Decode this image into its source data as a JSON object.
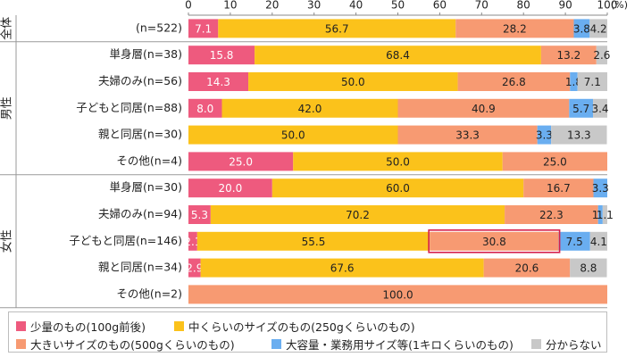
{
  "chart_data": {
    "type": "bar",
    "orientation": "horizontal",
    "stacked": true,
    "x_unit": "(%)",
    "xlim": [
      0,
      100
    ],
    "x_ticks": [
      "0",
      "10",
      "20",
      "30",
      "40",
      "50",
      "60",
      "70",
      "80",
      "90",
      "100"
    ],
    "groups": [
      {
        "label": "全体",
        "rows": [
          0
        ]
      },
      {
        "label": "男性",
        "rows": [
          1,
          2,
          3,
          4,
          5
        ]
      },
      {
        "label": "女性",
        "rows": [
          6,
          7,
          8,
          9,
          10
        ]
      }
    ],
    "categories": [
      "(n=522)",
      "単身層(n=38)",
      "夫婦のみ(n=56)",
      "子どもと同居(n=88)",
      "親と同居(n=30)",
      "その他(n=4)",
      "単身層(n=30)",
      "夫婦のみ(n=94)",
      "子どもと同居(n=146)",
      "親と同居(n=34)",
      "その他(n=2)"
    ],
    "series": [
      {
        "name": "少量のもの(100g前後)",
        "color": "#ee5a7e",
        "values": [
          7.1,
          15.8,
          14.3,
          8.0,
          0,
          25.0,
          20.0,
          5.3,
          2.1,
          2.9,
          0
        ],
        "labels": [
          "7.1",
          "15.8",
          "14.3",
          "8.0",
          "",
          "25.0",
          "20.0",
          "5.3",
          "2.1",
          "2.9",
          ""
        ]
      },
      {
        "name": "中くらいのサイズのもの(250gくらいのもの)",
        "color": "#fbc21b",
        "values": [
          56.7,
          68.4,
          50.0,
          42.0,
          50.0,
          50.0,
          60.0,
          70.2,
          55.5,
          67.6,
          0
        ],
        "labels": [
          "56.7",
          "68.4",
          "50.0",
          "42.0",
          "50.0",
          "50.0",
          "60.0",
          "70.2",
          "55.5",
          "67.6",
          ""
        ]
      },
      {
        "name": "大きいサイズのもの(500gくらいのもの)",
        "color": "#f79a72",
        "values": [
          28.2,
          13.2,
          26.8,
          40.9,
          33.3,
          25.0,
          16.7,
          22.3,
          30.8,
          20.6,
          100.0
        ],
        "labels": [
          "28.2",
          "13.2",
          "26.8",
          "40.9",
          "33.3",
          "25.0",
          "16.7",
          "22.3",
          "30.8",
          "20.6",
          "100.0"
        ]
      },
      {
        "name": "大容量・業務用サイズ等(1キロくらいのもの)",
        "color": "#6aaef0",
        "values": [
          3.8,
          0,
          1.8,
          5.7,
          3.3,
          0,
          3.3,
          1.1,
          7.5,
          0,
          0
        ],
        "labels": [
          "3.8",
          "",
          "1.8",
          "5.7",
          "3.3",
          "",
          "3.3",
          "1.1",
          "7.5",
          "",
          ""
        ]
      },
      {
        "name": "分からない",
        "color": "#c8c8c8",
        "values": [
          4.2,
          2.6,
          7.1,
          3.4,
          13.3,
          0,
          0,
          1.1,
          4.1,
          8.8,
          0
        ],
        "labels": [
          "4.2",
          "2.6",
          "7.1",
          "3.4",
          "13.3",
          "",
          "",
          "1.1",
          "4.1",
          "8.8",
          ""
        ]
      }
    ],
    "highlight": {
      "row": 8,
      "series": 2,
      "color": "#d6204d"
    },
    "legend_position": "bottom"
  },
  "legend_items": [
    "少量のもの(100g前後)",
    "中くらいのサイズのもの(250gくらいのもの)",
    "大きいサイズのもの(500gくらいのもの)",
    "大容量・業務用サイズ等(1キロくらいのもの)",
    "分からない"
  ]
}
